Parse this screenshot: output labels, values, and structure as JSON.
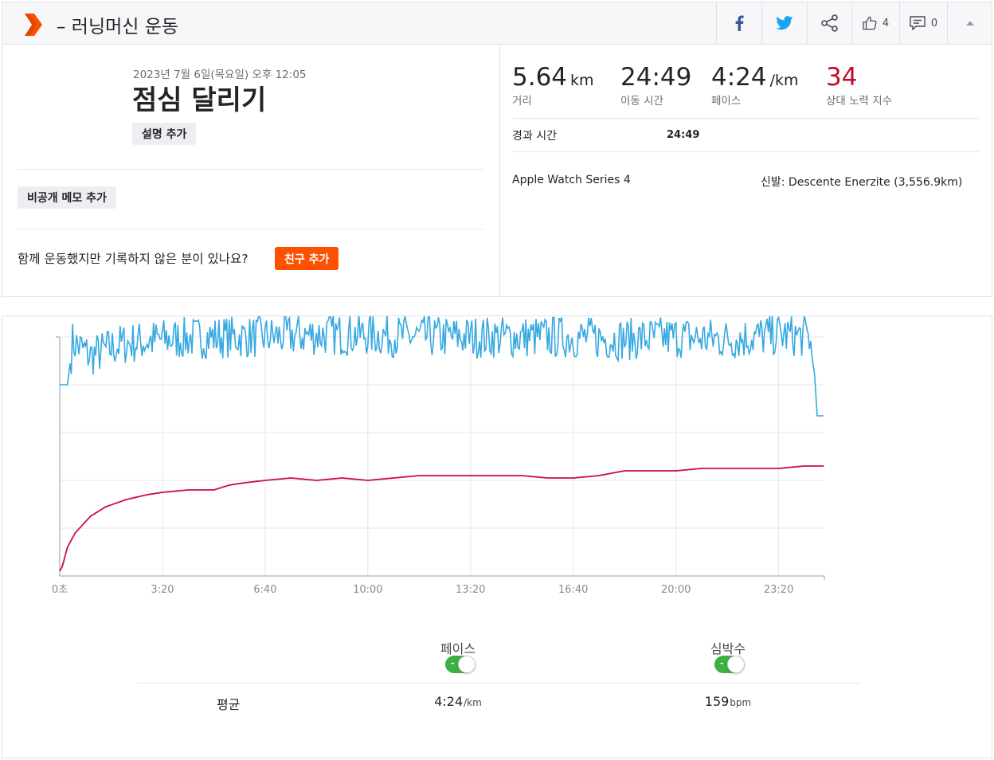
{
  "header": {
    "title": "– 러닝머신 운동",
    "kudos_count": "4",
    "comment_count": "0"
  },
  "activity": {
    "date": "2023년 7월 6일(목요일) 오후 12:05",
    "name": "점심 달리기",
    "add_description": "설명 추가",
    "add_private_note": "비공개 메모 추가",
    "friends_question": "함께 운동했지만 기록하지 않은 분이 있나요?",
    "add_friends": "친구 추가"
  },
  "stats": {
    "distance": {
      "value": "5.64",
      "unit": "km",
      "label": "거리"
    },
    "moving_time": {
      "value": "24:49",
      "label": "이동 시간"
    },
    "pace": {
      "value": "4:24",
      "unit": "/km",
      "label": "페이스"
    },
    "relative_effort": {
      "value": "34",
      "label": "상대 노력 지수"
    },
    "elapsed_label": "경과 시간",
    "elapsed_value": "24:49",
    "device": "Apple Watch Series 4",
    "shoes": "신발: Descente Enerzite (3,556.9km)"
  },
  "colors": {
    "brand": "#fc5200",
    "pace_line": "#36a9e1",
    "heart_line": "#cc0a4e",
    "relative_effort": "#c00c2c",
    "toggle_on": "#3cb043"
  },
  "icons": [
    "strava-logo-icon",
    "facebook-icon",
    "twitter-icon",
    "share-icon",
    "thumbs-up-icon",
    "comment-icon",
    "caret-up-icon"
  ],
  "chart_data": {
    "type": "line",
    "x_unit": "seconds",
    "x_ticks": [
      {
        "value": 0,
        "label": "0초"
      },
      {
        "value": 200,
        "label": "3:20"
      },
      {
        "value": 400,
        "label": "6:40"
      },
      {
        "value": 600,
        "label": "10:00"
      },
      {
        "value": 800,
        "label": "13:20"
      },
      {
        "value": 1000,
        "label": "16:40"
      },
      {
        "value": 1200,
        "label": "20:00"
      },
      {
        "value": 1400,
        "label": "23:20"
      }
    ],
    "x_range": [
      0,
      1489
    ],
    "grid": true,
    "series": [
      {
        "name": "페이스",
        "points": [
          [
            0,
            4.0
          ],
          [
            15,
            4.0
          ],
          [
            25,
            4.9
          ],
          [
            60,
            4.6
          ],
          [
            120,
            4.85
          ],
          [
            200,
            4.95
          ],
          [
            300,
            5.0
          ],
          [
            400,
            5.0
          ],
          [
            500,
            5.05
          ],
          [
            600,
            5.05
          ],
          [
            700,
            5.0
          ],
          [
            800,
            5.0
          ],
          [
            900,
            5.0
          ],
          [
            1000,
            5.0
          ],
          [
            1100,
            4.95
          ],
          [
            1200,
            5.0
          ],
          [
            1300,
            4.95
          ],
          [
            1400,
            5.05
          ],
          [
            1460,
            5.0
          ],
          [
            1470,
            4.2
          ],
          [
            1475,
            3.35
          ],
          [
            1489,
            3.35
          ]
        ]
      },
      {
        "name": "심박수",
        "points": [
          [
            0,
            0.1
          ],
          [
            5,
            0.2
          ],
          [
            15,
            0.6
          ],
          [
            30,
            0.9
          ],
          [
            60,
            1.25
          ],
          [
            90,
            1.45
          ],
          [
            130,
            1.6
          ],
          [
            170,
            1.7
          ],
          [
            200,
            1.75
          ],
          [
            250,
            1.8
          ],
          [
            300,
            1.8
          ],
          [
            330,
            1.9
          ],
          [
            360,
            1.95
          ],
          [
            400,
            2.0
          ],
          [
            450,
            2.05
          ],
          [
            500,
            2.0
          ],
          [
            550,
            2.05
          ],
          [
            600,
            2.0
          ],
          [
            650,
            2.05
          ],
          [
            700,
            2.1
          ],
          [
            750,
            2.1
          ],
          [
            800,
            2.1
          ],
          [
            850,
            2.1
          ],
          [
            900,
            2.1
          ],
          [
            950,
            2.05
          ],
          [
            1000,
            2.05
          ],
          [
            1050,
            2.1
          ],
          [
            1100,
            2.2
          ],
          [
            1150,
            2.2
          ],
          [
            1200,
            2.2
          ],
          [
            1250,
            2.25
          ],
          [
            1300,
            2.25
          ],
          [
            1350,
            2.25
          ],
          [
            1400,
            2.25
          ],
          [
            1450,
            2.3
          ],
          [
            1489,
            2.3
          ]
        ]
      }
    ],
    "legend": [
      "페이스",
      "심박수"
    ]
  },
  "averages": {
    "label": "평균",
    "pace_value": "4:24",
    "pace_unit": "/km",
    "heart_value": "159",
    "heart_unit": "bpm",
    "pace_label": "페이스",
    "heart_label": "심박수",
    "toggle_mark": "-"
  }
}
